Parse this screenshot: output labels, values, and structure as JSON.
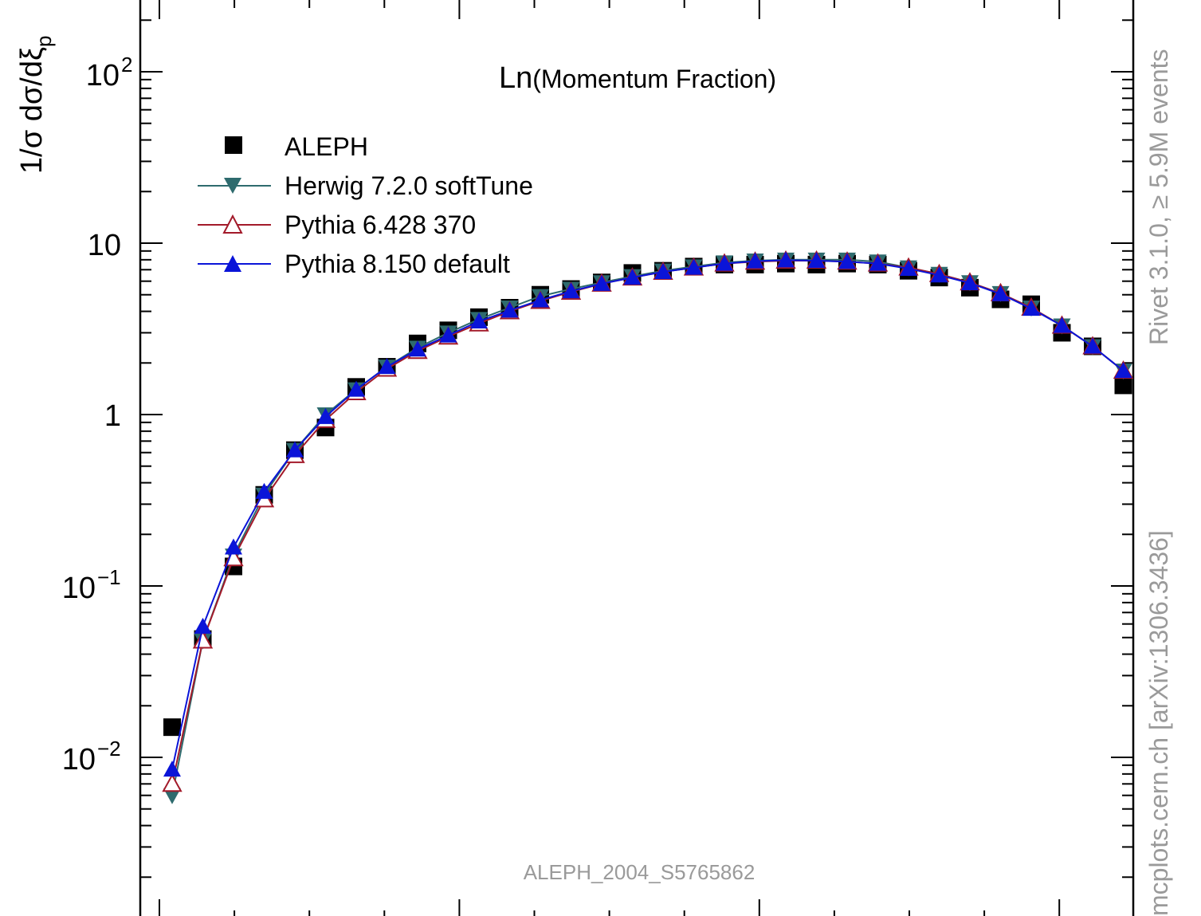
{
  "chart_data": {
    "type": "scatter",
    "title_partial": "Ln(Momentum Fraction)",
    "panel_label_prefix": "Ln",
    "panel_label_main": "(Momentum Fraction)",
    "ylabel_main": "1/σ dσ/dξ",
    "ylabel_sub": "p",
    "yscale": "log",
    "ylim": [
      0.0012,
      300
    ],
    "x": [
      0.2,
      0.4,
      0.6,
      0.8,
      1.0,
      1.2,
      1.4,
      1.6,
      1.8,
      2.0,
      2.2,
      2.4,
      2.6,
      2.8,
      3.0,
      3.2,
      3.4,
      3.6,
      3.8,
      4.0,
      4.2,
      4.4,
      4.6,
      4.8,
      5.0,
      5.2,
      5.4,
      5.6,
      5.8,
      6.0,
      6.2,
      6.4
    ],
    "series": [
      {
        "name": "ALEPH",
        "marker": "square",
        "color": "#000000",
        "values": [
          0.015,
          0.049,
          0.13,
          0.34,
          0.62,
          0.84,
          1.45,
          1.9,
          2.6,
          3.1,
          3.7,
          4.2,
          5.0,
          5.4,
          5.9,
          6.7,
          6.9,
          7.3,
          7.5,
          7.5,
          7.6,
          7.5,
          7.6,
          7.5,
          6.9,
          6.3,
          5.5,
          4.7,
          4.4,
          3.0,
          2.5,
          1.48
        ]
      },
      {
        "name": "Herwig 7.2.0 softTune",
        "marker": "triangle-down",
        "color": "#2e6b6e",
        "values": [
          0.006,
          0.048,
          0.15,
          0.34,
          0.62,
          1.0,
          1.4,
          1.9,
          2.45,
          3.0,
          3.6,
          4.2,
          4.9,
          5.4,
          5.9,
          6.4,
          6.9,
          7.3,
          7.7,
          7.9,
          8.0,
          8.0,
          8.0,
          7.8,
          7.2,
          6.6,
          5.9,
          5.1,
          4.2,
          3.3,
          2.5,
          1.8
        ]
      },
      {
        "name": "Pythia 6.428 370",
        "marker": "triangle-up-open",
        "color": "#a31a2a",
        "values": [
          0.007,
          0.048,
          0.145,
          0.32,
          0.58,
          0.93,
          1.35,
          1.85,
          2.35,
          2.85,
          3.4,
          4.0,
          4.6,
          5.2,
          5.8,
          6.3,
          6.8,
          7.2,
          7.6,
          7.8,
          7.9,
          7.9,
          7.8,
          7.6,
          7.2,
          6.6,
          5.9,
          5.1,
          4.2,
          3.3,
          2.5,
          1.8
        ]
      },
      {
        "name": "Pythia 8.150 default",
        "marker": "triangle-up",
        "color": "#0a14d8",
        "values": [
          0.0085,
          0.058,
          0.168,
          0.355,
          0.62,
          0.97,
          1.4,
          1.9,
          2.4,
          2.9,
          3.5,
          4.05,
          4.65,
          5.25,
          5.8,
          6.3,
          6.8,
          7.2,
          7.6,
          7.85,
          7.95,
          7.9,
          7.8,
          7.6,
          7.1,
          6.5,
          5.85,
          5.05,
          4.15,
          3.3,
          2.5,
          1.8
        ]
      }
    ],
    "ytick_labels": {
      "major_1e-2": {
        "base": "10",
        "exp": "−2"
      },
      "major_1e-1": {
        "base": "10",
        "exp": "−1"
      },
      "major_1": "1",
      "major_10": "10",
      "major_1e2": {
        "base": "10",
        "exp": "2"
      }
    },
    "legend_position": "top-left",
    "grid": false,
    "watermark": "ALEPH_2004_S5765862",
    "side_text_top": "Rivet 3.1.0, ≥ 5.9M events",
    "side_text_bottom": "mcplots.cern.ch [arXiv:1306.3436]"
  }
}
